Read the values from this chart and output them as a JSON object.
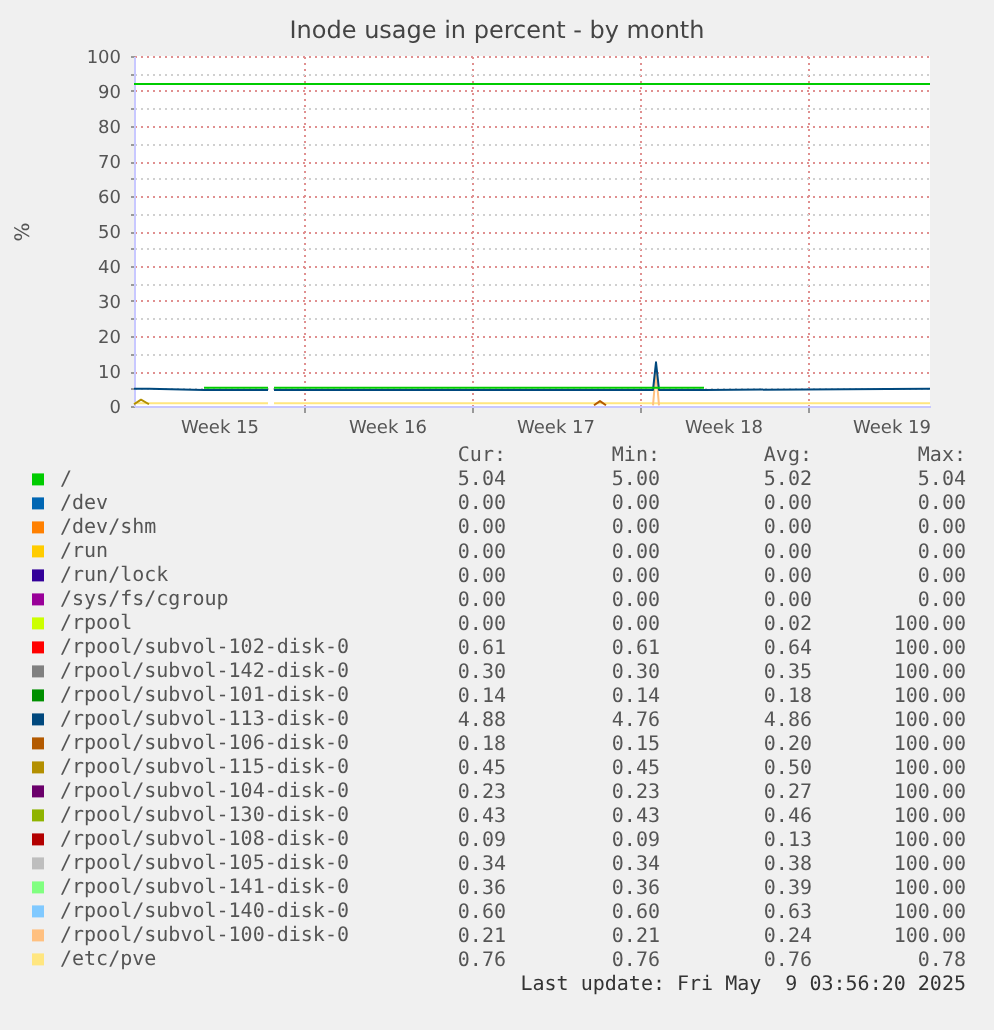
{
  "chart_data": {
    "type": "line",
    "title": "Inode usage in percent - by month",
    "ylabel": "%",
    "x": [
      "2025-04-06T23:00",
      "2025-04-07T06:00",
      "2025-04-07T14:00",
      "2025-04-09T21:00",
      "2025-04-12T13:00",
      "2025-04-12T16:00",
      "2025-04-12T19:00",
      "2025-04-26T03:00",
      "2025-04-26T09:00",
      "2025-04-26T15:00",
      "2025-04-28T14:00",
      "2025-04-28T17:00",
      "2025-04-28T20:00",
      "2025-04-30T17:00",
      "2025-05-10T03:00"
    ],
    "series": [
      {
        "name": "/",
        "color": "#00cc00",
        "values": [
          null,
          null,
          null,
          5.2,
          5.2,
          null,
          5.2,
          5.2,
          5.2,
          5.2,
          5.2,
          5.2,
          5.2,
          5.2,
          null
        ]
      },
      {
        "name": "/dev",
        "color": "#0066b3",
        "values": [
          null,
          null,
          null,
          null,
          null,
          null,
          null,
          null,
          null,
          null,
          null,
          null,
          null,
          null,
          null
        ]
      },
      {
        "name": "/dev/shm",
        "color": "#ff8000",
        "values": [
          null,
          null,
          null,
          null,
          null,
          null,
          null,
          null,
          null,
          null,
          null,
          null,
          null,
          null,
          null
        ]
      },
      {
        "name": "/run",
        "color": "#ffcc00",
        "values": [
          null,
          null,
          null,
          null,
          null,
          null,
          null,
          null,
          null,
          null,
          null,
          null,
          null,
          null,
          null
        ]
      },
      {
        "name": "/run/lock",
        "color": "#330099",
        "values": [
          null,
          null,
          null,
          null,
          null,
          null,
          null,
          null,
          null,
          null,
          null,
          null,
          null,
          null,
          null
        ]
      },
      {
        "name": "/sys/fs/cgroup",
        "color": "#990099",
        "values": [
          null,
          null,
          null,
          null,
          null,
          null,
          null,
          null,
          null,
          null,
          null,
          null,
          null,
          null,
          null
        ]
      },
      {
        "name": "/rpool",
        "color": "#ccff00",
        "values": [
          null,
          null,
          null,
          null,
          null,
          null,
          null,
          null,
          null,
          null,
          null,
          null,
          null,
          null,
          null
        ]
      },
      {
        "name": "/rpool/subvol-102-disk-0",
        "color": "#ff0000",
        "values": [
          null,
          null,
          null,
          null,
          null,
          null,
          null,
          null,
          null,
          null,
          null,
          null,
          null,
          null,
          null
        ]
      },
      {
        "name": "/rpool/subvol-142-disk-0",
        "color": "#808080",
        "values": [
          null,
          null,
          null,
          null,
          null,
          null,
          null,
          null,
          null,
          null,
          null,
          null,
          null,
          null,
          null
        ]
      },
      {
        "name": "/rpool/subvol-101-disk-0",
        "color": "#008f00",
        "values": [
          null,
          null,
          null,
          null,
          null,
          null,
          null,
          null,
          null,
          null,
          null,
          null,
          null,
          null,
          null
        ]
      },
      {
        "name": "/rpool/subvol-113-disk-0",
        "color": "#00487d",
        "values": [
          4.9,
          4.9,
          4.9,
          4.6,
          4.6,
          null,
          4.6,
          4.6,
          4.6,
          4.6,
          4.6,
          12.5,
          4.6,
          4.6,
          4.9
        ]
      },
      {
        "name": "/rpool/subvol-106-disk-0",
        "color": "#b35a00",
        "values": [
          null,
          null,
          null,
          null,
          null,
          null,
          null,
          0.2,
          1.4,
          0.2,
          null,
          null,
          null,
          null,
          null
        ]
      },
      {
        "name": "/rpool/subvol-115-disk-0",
        "color": "#b38f00",
        "values": [
          0.5,
          1.8,
          0.5,
          null,
          null,
          null,
          null,
          null,
          null,
          null,
          null,
          null,
          null,
          null,
          null
        ]
      },
      {
        "name": "/rpool/subvol-104-disk-0",
        "color": "#6b006b",
        "values": [
          null,
          null,
          null,
          null,
          null,
          null,
          null,
          null,
          null,
          null,
          null,
          null,
          null,
          null,
          null
        ]
      },
      {
        "name": "/rpool/subvol-130-disk-0",
        "color": "#8fb300",
        "values": [
          null,
          null,
          null,
          null,
          null,
          null,
          null,
          null,
          null,
          null,
          null,
          null,
          null,
          null,
          null
        ]
      },
      {
        "name": "/rpool/subvol-108-disk-0",
        "color": "#b30000",
        "values": [
          null,
          null,
          null,
          null,
          null,
          null,
          null,
          null,
          null,
          null,
          null,
          null,
          null,
          null,
          null
        ]
      },
      {
        "name": "/rpool/subvol-105-disk-0",
        "color": "#bebebe",
        "values": [
          null,
          null,
          null,
          null,
          null,
          null,
          null,
          null,
          null,
          null,
          null,
          null,
          null,
          null,
          null
        ]
      },
      {
        "name": "/rpool/subvol-141-disk-0",
        "color": "#80ff80",
        "values": [
          null,
          null,
          null,
          null,
          null,
          null,
          null,
          null,
          null,
          null,
          null,
          null,
          null,
          null,
          null
        ]
      },
      {
        "name": "/rpool/subvol-140-disk-0",
        "color": "#80c9ff",
        "values": [
          null,
          null,
          null,
          null,
          null,
          null,
          null,
          null,
          null,
          null,
          null,
          null,
          null,
          null,
          null
        ]
      },
      {
        "name": "/rpool/subvol-100-disk-0",
        "color": "#ffc080",
        "values": [
          null,
          null,
          null,
          null,
          null,
          null,
          null,
          null,
          null,
          null,
          0.2,
          10,
          0.2,
          null,
          null
        ]
      },
      {
        "name": "/etc/pve",
        "color": "#ffe680",
        "values": [
          0.8,
          0.8,
          0.8,
          0.8,
          0.8,
          null,
          0.8,
          0.8,
          0.8,
          0.8,
          0.8,
          0.8,
          0.8,
          0.8,
          0.8
        ]
      }
    ],
    "xlim": [
      "2025-04-06T23:00",
      "2025-05-10T03:00"
    ],
    "xticks": [
      {
        "value": "2025-04-10T12:00",
        "label": "Week 15"
      },
      {
        "value": "2025-04-14",
        "label": null
      },
      {
        "value": "2025-04-17T12:00",
        "label": "Week 16"
      },
      {
        "value": "2025-04-21",
        "label": null
      },
      {
        "value": "2025-04-24T12:00",
        "label": "Week 17"
      },
      {
        "value": "2025-04-28",
        "label": null
      },
      {
        "value": "2025-05-01T12:00",
        "label": "Week 18"
      },
      {
        "value": "2025-05-05",
        "label": null
      },
      {
        "value": "2025-05-08T12:00",
        "label": "Week 19"
      }
    ],
    "ylim": [
      0,
      100
    ],
    "yticks": [
      0,
      {
        "value": 5,
        "label": null
      },
      10,
      {
        "value": 15,
        "label": null
      },
      20,
      {
        "value": 25,
        "label": null
      },
      30,
      {
        "value": 35,
        "label": null
      },
      40,
      {
        "value": 45,
        "label": null
      },
      50,
      {
        "value": 55,
        "label": null
      },
      60,
      {
        "value": 65,
        "label": null
      },
      70,
      {
        "value": 75,
        "label": null
      },
      80,
      {
        "value": 85,
        "label": null
      },
      90,
      {
        "value": 95,
        "label": null
      },
      100
    ],
    "ref_lines": [
      {
        "axis": "y",
        "value": 92,
        "color": "#00cc00"
      }
    ],
    "grid": true,
    "legend": "bottom",
    "annotations": [
      "Cur:",
      "Min:",
      "Avg:",
      "Max:",
      "5.04",
      "5.00",
      "5.02",
      "5.04",
      "0.00",
      "0.00",
      "0.00",
      "0.00",
      "0.00",
      "0.00",
      "0.00",
      "0.00",
      "0.00",
      "0.00",
      "0.00",
      "0.00",
      "0.00",
      "0.00",
      "0.00",
      "0.00",
      "0.00",
      "0.00",
      "0.00",
      "0.00",
      "0.00",
      "0.00",
      "0.02",
      "100.00",
      "0.61",
      "0.61",
      "0.64",
      "100.00",
      "0.30",
      "0.30",
      "0.35",
      "100.00",
      "0.14",
      "0.14",
      "0.18",
      "100.00",
      "4.88",
      "4.76",
      "4.86",
      "100.00",
      "0.18",
      "0.15",
      "0.20",
      "100.00",
      "0.45",
      "0.45",
      "0.50",
      "100.00",
      "0.23",
      "0.23",
      "0.27",
      "100.00",
      "0.43",
      "0.43",
      "0.46",
      "100.00",
      "0.09",
      "0.09",
      "0.13",
      "100.00",
      "0.34",
      "0.34",
      "0.38",
      "100.00",
      "0.36",
      "0.36",
      "0.39",
      "100.00",
      "0.60",
      "0.60",
      "0.63",
      "100.00",
      "0.21",
      "0.21",
      "0.24",
      "100.00",
      "0.76",
      "0.76",
      "0.76",
      "0.78",
      "Last update: Fri May  9 03:56:20 2025"
    ]
  }
}
